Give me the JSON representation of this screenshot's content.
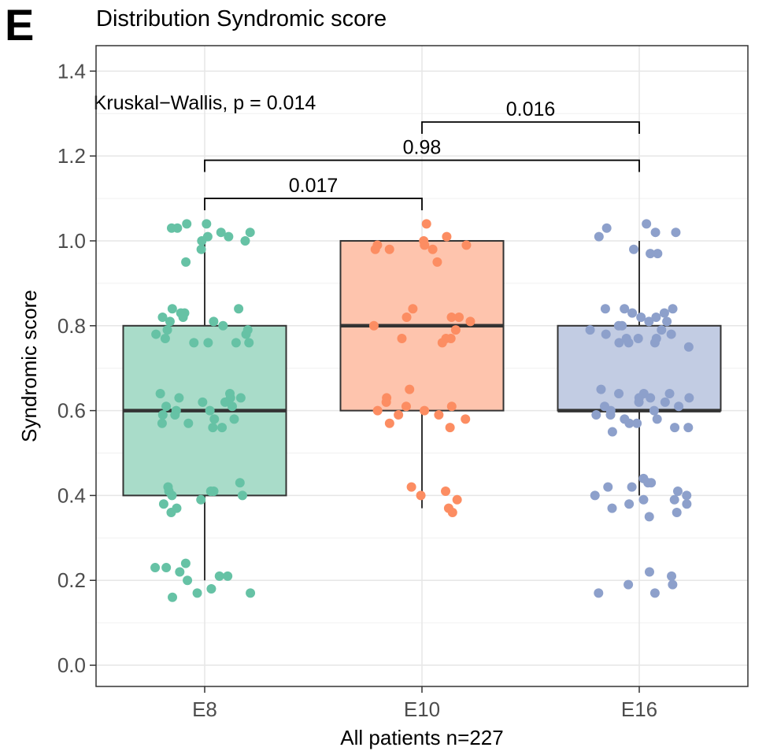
{
  "panel_letter": "E",
  "chart_data": {
    "type": "box",
    "title": "Distribution Syndromic score",
    "xlabel": "All patients n=227",
    "ylabel": "Syndromic score",
    "ylim": [
      -0.05,
      1.46
    ],
    "yticks": [
      0.0,
      0.2,
      0.4,
      0.6,
      0.8,
      1.0,
      1.2,
      1.4
    ],
    "ytick_labels": [
      "0.0",
      "0.2",
      "0.4",
      "0.6",
      "0.8",
      "1.0",
      "1.2",
      "1.4"
    ],
    "categories": [
      "E8",
      "E10",
      "E16"
    ],
    "grid": true,
    "boxes": [
      {
        "category": "E8",
        "color": "#66c2a5",
        "fill": "#a9dcc9",
        "min": 0.2,
        "q1": 0.4,
        "median": 0.6,
        "q3": 0.8,
        "max": 1.0,
        "points": [
          1.04,
          1.04,
          1.03,
          1.03,
          1.02,
          1.02,
          1.01,
          1.01,
          1.0,
          1.0,
          0.98,
          0.95,
          0.84,
          0.84,
          0.83,
          0.83,
          0.82,
          0.82,
          0.81,
          0.81,
          0.8,
          0.79,
          0.79,
          0.78,
          0.78,
          0.77,
          0.76,
          0.76,
          0.76,
          0.76,
          0.64,
          0.64,
          0.63,
          0.63,
          0.63,
          0.62,
          0.62,
          0.61,
          0.61,
          0.6,
          0.6,
          0.59,
          0.59,
          0.58,
          0.58,
          0.57,
          0.57,
          0.56,
          0.56,
          0.43,
          0.42,
          0.41,
          0.41,
          0.41,
          0.4,
          0.4,
          0.39,
          0.38,
          0.37,
          0.36,
          0.24,
          0.23,
          0.23,
          0.22,
          0.21,
          0.21,
          0.2,
          0.18,
          0.17,
          0.17,
          0.16
        ]
      },
      {
        "category": "E10",
        "color": "#fc8d62",
        "fill": "#fec4ad",
        "min": 0.37,
        "q1": 0.6,
        "median": 0.8,
        "q3": 1.0,
        "max": 1.0,
        "points": [
          1.04,
          1.01,
          1.0,
          0.99,
          0.99,
          0.99,
          0.98,
          0.98,
          0.98,
          0.95,
          0.84,
          0.82,
          0.82,
          0.82,
          0.81,
          0.8,
          0.79,
          0.77,
          0.77,
          0.77,
          0.76,
          0.65,
          0.63,
          0.62,
          0.61,
          0.61,
          0.6,
          0.6,
          0.59,
          0.59,
          0.58,
          0.57,
          0.56,
          0.42,
          0.41,
          0.4,
          0.39,
          0.37,
          0.36
        ]
      },
      {
        "category": "E16",
        "color": "#8da0cb",
        "fill": "#c2cce3",
        "min": 0.4,
        "q1": 0.6,
        "median": 0.6,
        "q3": 0.8,
        "max": 1.0,
        "points": [
          1.04,
          1.03,
          1.02,
          1.02,
          1.01,
          0.98,
          0.97,
          0.97,
          0.84,
          0.84,
          0.84,
          0.83,
          0.83,
          0.82,
          0.82,
          0.81,
          0.81,
          0.8,
          0.8,
          0.79,
          0.79,
          0.78,
          0.78,
          0.77,
          0.77,
          0.77,
          0.76,
          0.76,
          0.76,
          0.75,
          0.65,
          0.64,
          0.64,
          0.64,
          0.63,
          0.63,
          0.63,
          0.62,
          0.62,
          0.61,
          0.61,
          0.6,
          0.6,
          0.59,
          0.59,
          0.58,
          0.58,
          0.57,
          0.57,
          0.56,
          0.56,
          0.55,
          0.44,
          0.43,
          0.43,
          0.42,
          0.42,
          0.41,
          0.4,
          0.4,
          0.39,
          0.39,
          0.38,
          0.38,
          0.37,
          0.36,
          0.35,
          0.22,
          0.21,
          0.19,
          0.19,
          0.17,
          0.17
        ]
      }
    ],
    "annotations": [
      {
        "text": "Kruskal−Wallis, p = 0.014",
        "x_category": "E8",
        "y": 1.31
      },
      {
        "text": "0.016",
        "from": "E10",
        "to": "E16",
        "y": 1.28
      },
      {
        "text": "0.98",
        "from": "E8",
        "to": "E16",
        "y": 1.19
      },
      {
        "text": "0.017",
        "from": "E8",
        "to": "E10",
        "y": 1.1
      }
    ]
  }
}
